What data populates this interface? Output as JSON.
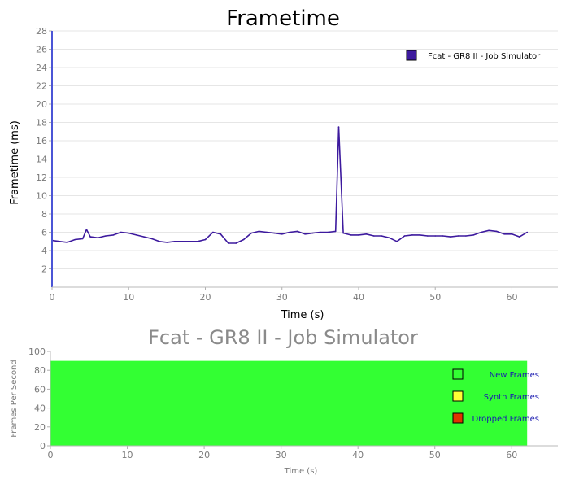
{
  "chart_data": [
    {
      "type": "line",
      "title": "Frametime",
      "xlabel": "Time (s)",
      "ylabel": "Frametime (ms)",
      "xlim": [
        0,
        66
      ],
      "ylim": [
        0,
        28
      ],
      "xticks": [
        0,
        10,
        20,
        30,
        40,
        50,
        60
      ],
      "yticks": [
        2,
        4,
        6,
        8,
        10,
        12,
        14,
        16,
        18,
        20,
        22,
        24,
        26,
        28
      ],
      "grid": true,
      "legend_position": "top-right",
      "series": [
        {
          "name": "Fcat - GR8 II - Job Simulator",
          "color": "#3d1a9e",
          "x": [
            0,
            1,
            2,
            3,
            4,
            4.5,
            5,
            6,
            7,
            8,
            9,
            10,
            11,
            12,
            13,
            14,
            15,
            16,
            17,
            18,
            19,
            20,
            21,
            22,
            23,
            24,
            25,
            26,
            27,
            28,
            29,
            30,
            31,
            32,
            33,
            34,
            35,
            36,
            37,
            37.4,
            38,
            39,
            40,
            41,
            42,
            43,
            44,
            45,
            46,
            47,
            48,
            49,
            50,
            51,
            52,
            53,
            54,
            55,
            56,
            57,
            58,
            59,
            60,
            61,
            62
          ],
          "values": [
            5.1,
            5.0,
            4.9,
            5.2,
            5.3,
            6.3,
            5.5,
            5.4,
            5.6,
            5.7,
            6.0,
            5.9,
            5.7,
            5.5,
            5.3,
            5.0,
            4.9,
            5.0,
            5.0,
            5.0,
            5.0,
            5.2,
            6.0,
            5.8,
            4.8,
            4.8,
            5.2,
            5.9,
            6.1,
            6.0,
            5.9,
            5.8,
            6.0,
            6.1,
            5.8,
            5.9,
            6.0,
            6.0,
            6.1,
            17.5,
            5.9,
            5.7,
            5.7,
            5.8,
            5.6,
            5.6,
            5.4,
            5.0,
            5.6,
            5.7,
            5.7,
            5.6,
            5.6,
            5.6,
            5.5,
            5.6,
            5.6,
            5.7,
            6.0,
            6.2,
            6.1,
            5.8,
            5.8,
            5.5,
            6.0
          ]
        }
      ]
    },
    {
      "type": "area",
      "title": "Fcat - GR8 II - Job Simulator",
      "xlabel": "Time (s)",
      "ylabel": "Frames Per Second",
      "xlim": [
        0,
        66
      ],
      "ylim": [
        0,
        100
      ],
      "xticks": [
        0,
        10,
        20,
        30,
        40,
        50,
        60
      ],
      "yticks": [
        0,
        20,
        40,
        60,
        80,
        100
      ],
      "grid": false,
      "legend_position": "right",
      "series": [
        {
          "name": "New Frames",
          "color": "#33ff33",
          "x": [
            0,
            62
          ],
          "values": [
            90,
            90
          ]
        },
        {
          "name": "Synth Frames",
          "color": "#ffff33",
          "x": [
            0,
            62
          ],
          "values": [
            0,
            0
          ]
        },
        {
          "name": "Dropped Frames",
          "color": "#e03300",
          "x": [
            0,
            62
          ],
          "values": [
            0,
            0
          ]
        }
      ]
    }
  ]
}
